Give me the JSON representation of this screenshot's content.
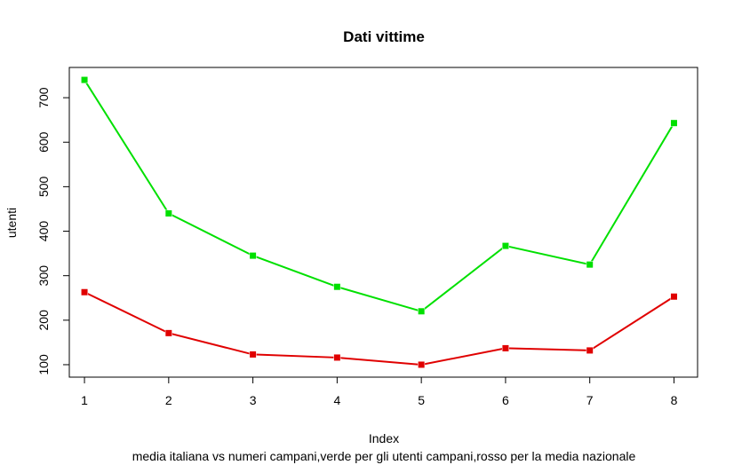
{
  "chart_data": {
    "type": "line",
    "title": "Dati vittime",
    "xlabel": "Index",
    "ylabel": "utenti",
    "subtitle": "media italiana vs numeri campani,verde per gli utenti campani,rosso per la media nazionale",
    "x": [
      1,
      2,
      3,
      4,
      5,
      6,
      7,
      8
    ],
    "xticks": [
      "1",
      "2",
      "3",
      "4",
      "5",
      "6",
      "7",
      "8"
    ],
    "yticks": [
      "100",
      "200",
      "300",
      "400",
      "500",
      "600",
      "700"
    ],
    "xlim": [
      0.82,
      8.28
    ],
    "ylim": [
      72,
      768
    ],
    "grid": false,
    "series": [
      {
        "color": "#00e000",
        "values": [
          740,
          440,
          345,
          275,
          220,
          367,
          325,
          643
        ]
      },
      {
        "color": "#e00000",
        "values": [
          263,
          171,
          123,
          116,
          100,
          137,
          132,
          253
        ]
      }
    ]
  }
}
